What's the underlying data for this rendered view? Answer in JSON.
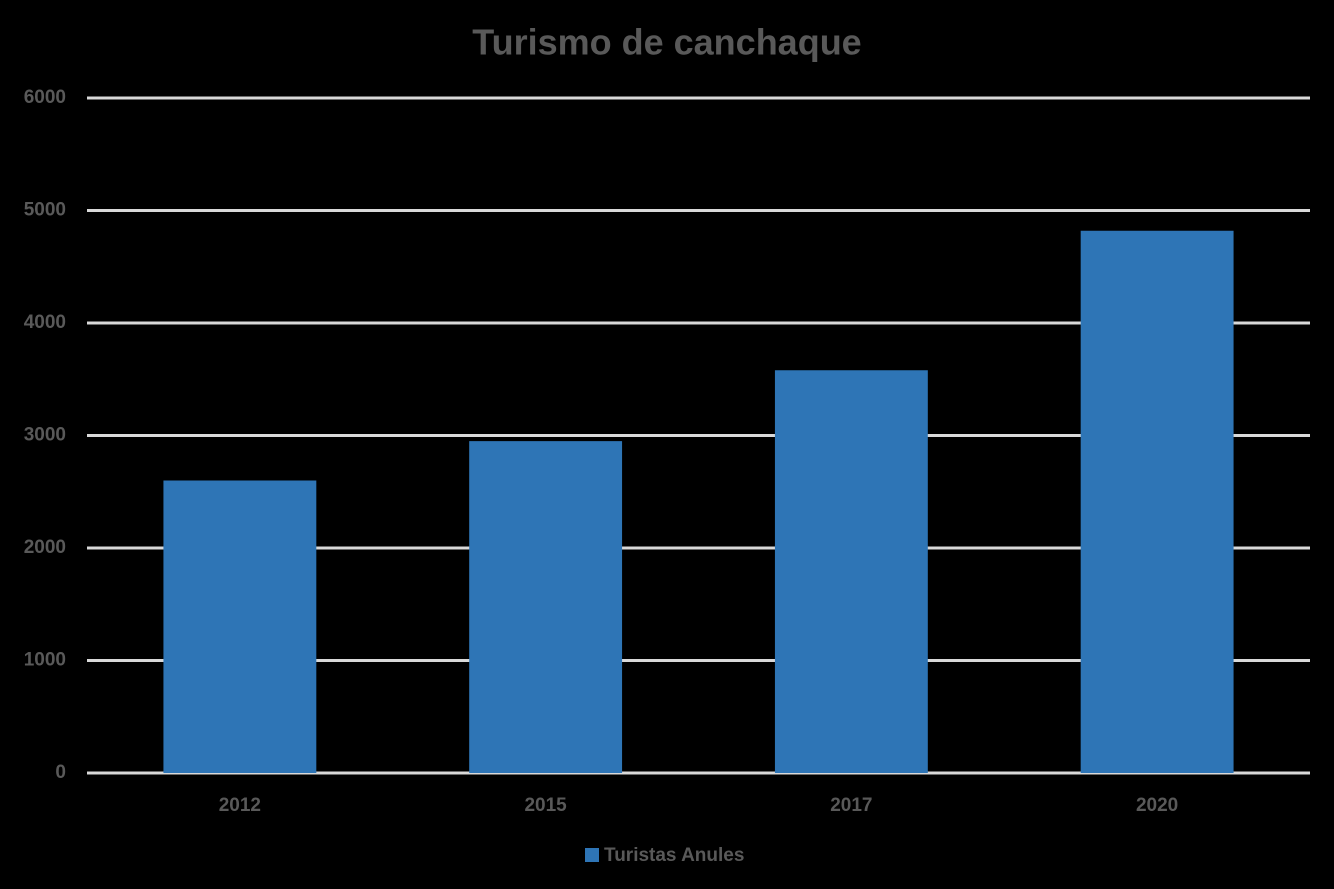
{
  "chart_data": {
    "type": "bar",
    "title": "Turismo de canchaque",
    "categories": [
      "2012",
      "2015",
      "2017",
      "2020"
    ],
    "series": [
      {
        "name": "Turistas Anules",
        "color": "#2e75b6",
        "values": [
          2600,
          2950,
          3580,
          4820
        ]
      }
    ],
    "ylim": [
      0,
      6000
    ],
    "yticks": [
      0,
      1000,
      2000,
      3000,
      4000,
      5000,
      6000
    ],
    "grid": true,
    "legend": "bottom"
  }
}
